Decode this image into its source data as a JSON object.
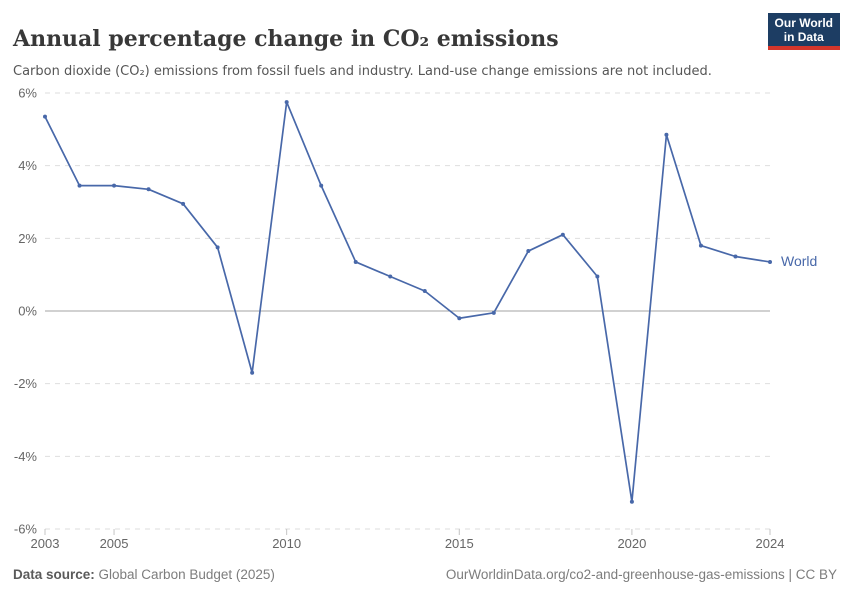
{
  "header": {
    "title": "Annual percentage change in CO₂ emissions",
    "subtitle": "Carbon dioxide (CO₂) emissions from fossil fuels and industry. Land-use change emissions are not included.",
    "logo": {
      "line1": "Our World",
      "line2": "in Data"
    }
  },
  "chart_data": {
    "type": "line",
    "title": "Annual percentage change in CO₂ emissions",
    "xlabel": "",
    "ylabel": "",
    "x": [
      2003,
      2004,
      2005,
      2006,
      2007,
      2008,
      2009,
      2010,
      2011,
      2012,
      2013,
      2014,
      2015,
      2016,
      2017,
      2018,
      2019,
      2020,
      2021,
      2022,
      2023,
      2024
    ],
    "series": [
      {
        "name": "World",
        "color": "#4868a9",
        "values": [
          5.35,
          3.45,
          3.45,
          3.35,
          2.95,
          1.75,
          -1.7,
          5.75,
          3.45,
          1.35,
          0.95,
          0.55,
          -0.2,
          -0.05,
          1.65,
          2.1,
          0.95,
          -5.25,
          4.85,
          1.8,
          1.5,
          1.35
        ]
      }
    ],
    "ylim": [
      -6,
      6
    ],
    "yticks": [
      6,
      4,
      2,
      0,
      -2,
      -4,
      -6
    ],
    "ytick_labels": [
      "6%",
      "4%",
      "2%",
      "0%",
      "-2%",
      "-4%",
      "-6%"
    ],
    "xticks": [
      2003,
      2005,
      2010,
      2015,
      2020,
      2024
    ],
    "grid": "horizontal-dashed",
    "zero_line": true,
    "legend_position": "end-of-line"
  },
  "colors": {
    "line": "#4868a9",
    "grid": "#dedede",
    "zero_line": "#a3a3a3",
    "tick": "#c4c4c4",
    "axis_text": "#666666",
    "logo_bg": "#1d3d63",
    "logo_red": "#d4362b"
  },
  "footer": {
    "source_label": "Data source:",
    "source_value": " Global Carbon Budget (2025)",
    "credit": "OurWorldinData.org/co2-and-greenhouse-gas-emissions | CC BY"
  }
}
